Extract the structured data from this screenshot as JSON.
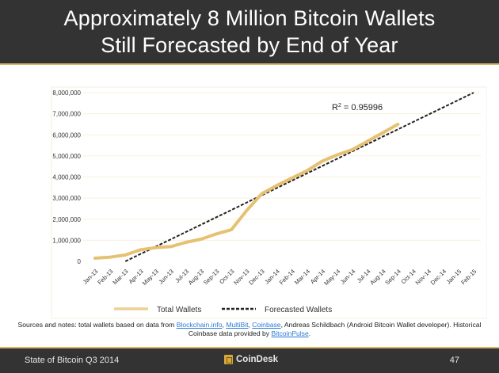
{
  "header": {
    "title_line1": "Approximately 8 Million Bitcoin Wallets",
    "title_line2": "Still Forecasted by End of Year"
  },
  "colors": {
    "header_bg": "#333333",
    "accent": "#d8b867",
    "total_line": "#e6c172",
    "forecast_line": "#222222",
    "link": "#2a7bd8"
  },
  "chart_data": {
    "type": "line",
    "title": "Approximately 8 Million Bitcoin Wallets Still Forecasted by End of Year",
    "xlabel": "",
    "ylabel": "",
    "ylim": [
      0,
      8000000
    ],
    "yticks": [
      "0",
      "1,000,000",
      "2,000,000",
      "3,000,000",
      "4,000,000",
      "5,000,000",
      "6,000,000",
      "7,000,000",
      "8,000,000"
    ],
    "ytick_values": [
      0,
      1000000,
      2000000,
      3000000,
      4000000,
      5000000,
      6000000,
      7000000,
      8000000
    ],
    "categories": [
      "Jan-13",
      "Feb-13",
      "Mar-13",
      "Apr-13",
      "May-13",
      "Jun-13",
      "Jul-13",
      "Aug-13",
      "Sep-13",
      "Oct-13",
      "Nov-13",
      "Dec-13",
      "Jan-14",
      "Feb-14",
      "Mar-14",
      "Apr-14",
      "May-14",
      "Jun-14",
      "Jul-14",
      "Aug-14",
      "Sep-14",
      "Oct-14",
      "Nov-14",
      "Dec-14",
      "Jan-15",
      "Feb-15"
    ],
    "grid": true,
    "legend_position": "bottom",
    "series": [
      {
        "name": "Total Wallets",
        "style": "solid",
        "values": [
          150000,
          200000,
          300000,
          550000,
          650000,
          700000,
          900000,
          1050000,
          1300000,
          1500000,
          2400000,
          3200000,
          3600000,
          3950000,
          4300000,
          4750000,
          5050000,
          5300000,
          5700000,
          6100000,
          6500000,
          null,
          null,
          null,
          null,
          null
        ]
      },
      {
        "name": "Forecasted Wallets",
        "style": "dashed",
        "start_category": "Mar-13",
        "end_category": "Feb-15",
        "start_value": 0,
        "end_value": 8000000
      }
    ],
    "annotation": {
      "text_base": "R",
      "text_sup": "2",
      "text_rest": " = 0.95996"
    }
  },
  "notes": {
    "prefix": "Sources and notes: total wallets based on data from ",
    "link1": "Blockchain.info",
    "sep1": ", ",
    "link2": "MultiBit",
    "sep2": ", ",
    "link3": "Coinbase",
    "mid": ", Andreas Schildbach (Android Bitcoin Wallet developer). Historical Coinbase data provided by ",
    "link4": "BitcoinPulse",
    "suffix": "."
  },
  "footer": {
    "left": "State of Bitcoin Q3 2014",
    "brand": "CoinDesk",
    "page": "47"
  }
}
